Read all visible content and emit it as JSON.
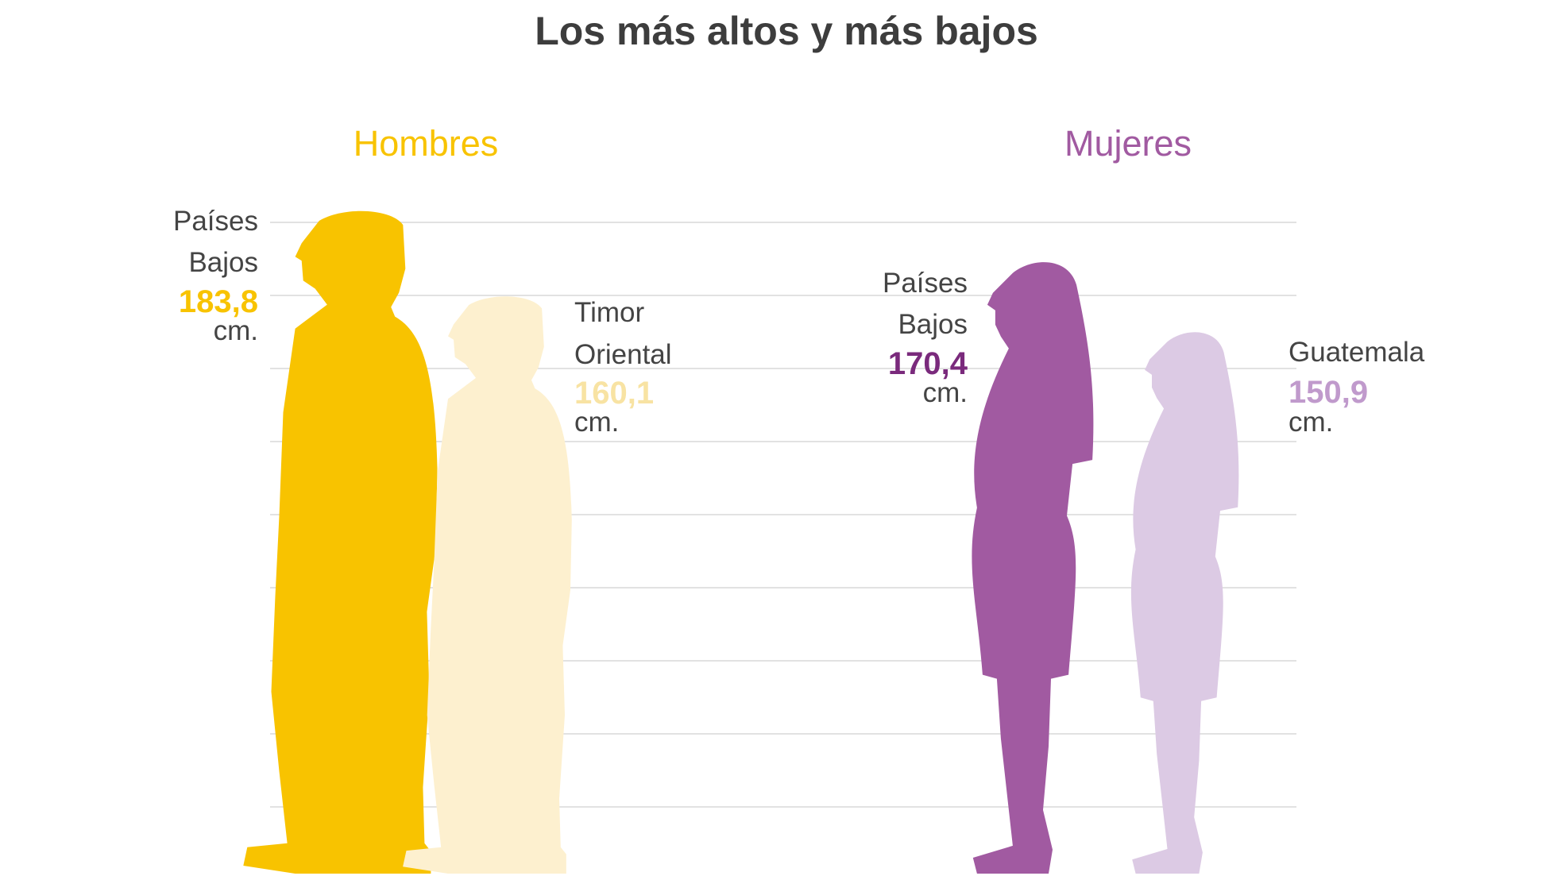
{
  "chart_data": {
    "type": "bar",
    "title": "Los más altos y más bajos",
    "unit": "cm.",
    "grid": true,
    "ylim": [
      0,
      183.8
    ],
    "groups": [
      {
        "name": "Hombres",
        "color": "#f8c300",
        "items": [
          {
            "label_lines": [
              "Países",
              "Bajos"
            ],
            "value": 183.8,
            "value_text": "183,8",
            "unit": "cm.",
            "color": "#f8c300"
          },
          {
            "label_lines": [
              "Timor",
              "Oriental"
            ],
            "value": 160.1,
            "value_text": "160,1",
            "unit": "cm.",
            "color": "#fdf0cf",
            "value_color": "#f8e3a3"
          }
        ]
      },
      {
        "name": "Mujeres",
        "color": "#a15aa1",
        "items": [
          {
            "label_lines": [
              "Países",
              "Bajos"
            ],
            "value": 170.4,
            "value_text": "170,4",
            "unit": "cm.",
            "color": "#a15aa1",
            "value_color": "#7a2a7c"
          },
          {
            "label_lines": [
              "Guatemala"
            ],
            "value": 150.9,
            "value_text": "150,9",
            "unit": "cm.",
            "color": "#dccae4",
            "value_color": "#c09acc"
          }
        ]
      }
    ]
  }
}
